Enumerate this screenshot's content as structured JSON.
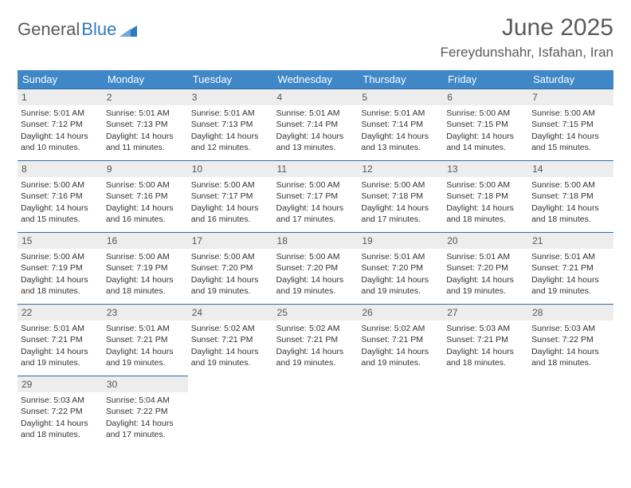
{
  "brand": {
    "part1": "General",
    "part2": "Blue"
  },
  "title": "June 2025",
  "location": "Fereydunshahr, Isfahan, Iran",
  "colors": {
    "header_bg": "#3f87c7",
    "header_text": "#ffffff",
    "cell_border": "#2e6da4",
    "daynum_bg": "#ededed",
    "text": "#333333",
    "brand_gray": "#5a5a5a",
    "brand_blue": "#2f7abf",
    "page_bg": "#ffffff"
  },
  "typography": {
    "title_fontsize": 30,
    "location_fontsize": 17,
    "weekday_fontsize": 13,
    "daynum_fontsize": 12,
    "cell_fontsize": 10.5
  },
  "weekdays": [
    "Sunday",
    "Monday",
    "Tuesday",
    "Wednesday",
    "Thursday",
    "Friday",
    "Saturday"
  ],
  "labels": {
    "sunrise": "Sunrise:",
    "sunset": "Sunset:",
    "daylight": "Daylight:"
  },
  "days": [
    {
      "n": 1,
      "sunrise": "5:01 AM",
      "sunset": "7:12 PM",
      "daylight": "14 hours and 10 minutes."
    },
    {
      "n": 2,
      "sunrise": "5:01 AM",
      "sunset": "7:13 PM",
      "daylight": "14 hours and 11 minutes."
    },
    {
      "n": 3,
      "sunrise": "5:01 AM",
      "sunset": "7:13 PM",
      "daylight": "14 hours and 12 minutes."
    },
    {
      "n": 4,
      "sunrise": "5:01 AM",
      "sunset": "7:14 PM",
      "daylight": "14 hours and 13 minutes."
    },
    {
      "n": 5,
      "sunrise": "5:01 AM",
      "sunset": "7:14 PM",
      "daylight": "14 hours and 13 minutes."
    },
    {
      "n": 6,
      "sunrise": "5:00 AM",
      "sunset": "7:15 PM",
      "daylight": "14 hours and 14 minutes."
    },
    {
      "n": 7,
      "sunrise": "5:00 AM",
      "sunset": "7:15 PM",
      "daylight": "14 hours and 15 minutes."
    },
    {
      "n": 8,
      "sunrise": "5:00 AM",
      "sunset": "7:16 PM",
      "daylight": "14 hours and 15 minutes."
    },
    {
      "n": 9,
      "sunrise": "5:00 AM",
      "sunset": "7:16 PM",
      "daylight": "14 hours and 16 minutes."
    },
    {
      "n": 10,
      "sunrise": "5:00 AM",
      "sunset": "7:17 PM",
      "daylight": "14 hours and 16 minutes."
    },
    {
      "n": 11,
      "sunrise": "5:00 AM",
      "sunset": "7:17 PM",
      "daylight": "14 hours and 17 minutes."
    },
    {
      "n": 12,
      "sunrise": "5:00 AM",
      "sunset": "7:18 PM",
      "daylight": "14 hours and 17 minutes."
    },
    {
      "n": 13,
      "sunrise": "5:00 AM",
      "sunset": "7:18 PM",
      "daylight": "14 hours and 18 minutes."
    },
    {
      "n": 14,
      "sunrise": "5:00 AM",
      "sunset": "7:18 PM",
      "daylight": "14 hours and 18 minutes."
    },
    {
      "n": 15,
      "sunrise": "5:00 AM",
      "sunset": "7:19 PM",
      "daylight": "14 hours and 18 minutes."
    },
    {
      "n": 16,
      "sunrise": "5:00 AM",
      "sunset": "7:19 PM",
      "daylight": "14 hours and 18 minutes."
    },
    {
      "n": 17,
      "sunrise": "5:00 AM",
      "sunset": "7:20 PM",
      "daylight": "14 hours and 19 minutes."
    },
    {
      "n": 18,
      "sunrise": "5:00 AM",
      "sunset": "7:20 PM",
      "daylight": "14 hours and 19 minutes."
    },
    {
      "n": 19,
      "sunrise": "5:01 AM",
      "sunset": "7:20 PM",
      "daylight": "14 hours and 19 minutes."
    },
    {
      "n": 20,
      "sunrise": "5:01 AM",
      "sunset": "7:20 PM",
      "daylight": "14 hours and 19 minutes."
    },
    {
      "n": 21,
      "sunrise": "5:01 AM",
      "sunset": "7:21 PM",
      "daylight": "14 hours and 19 minutes."
    },
    {
      "n": 22,
      "sunrise": "5:01 AM",
      "sunset": "7:21 PM",
      "daylight": "14 hours and 19 minutes."
    },
    {
      "n": 23,
      "sunrise": "5:01 AM",
      "sunset": "7:21 PM",
      "daylight": "14 hours and 19 minutes."
    },
    {
      "n": 24,
      "sunrise": "5:02 AM",
      "sunset": "7:21 PM",
      "daylight": "14 hours and 19 minutes."
    },
    {
      "n": 25,
      "sunrise": "5:02 AM",
      "sunset": "7:21 PM",
      "daylight": "14 hours and 19 minutes."
    },
    {
      "n": 26,
      "sunrise": "5:02 AM",
      "sunset": "7:21 PM",
      "daylight": "14 hours and 19 minutes."
    },
    {
      "n": 27,
      "sunrise": "5:03 AM",
      "sunset": "7:21 PM",
      "daylight": "14 hours and 18 minutes."
    },
    {
      "n": 28,
      "sunrise": "5:03 AM",
      "sunset": "7:22 PM",
      "daylight": "14 hours and 18 minutes."
    },
    {
      "n": 29,
      "sunrise": "5:03 AM",
      "sunset": "7:22 PM",
      "daylight": "14 hours and 18 minutes."
    },
    {
      "n": 30,
      "sunrise": "5:04 AM",
      "sunset": "7:22 PM",
      "daylight": "14 hours and 17 minutes."
    }
  ],
  "layout": {
    "start_weekday": 0,
    "columns": 7,
    "rows": 5
  }
}
